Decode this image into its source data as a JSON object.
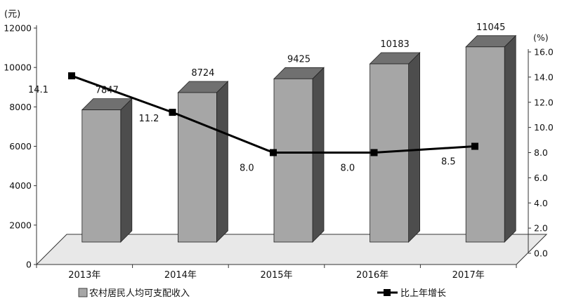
{
  "chart_data": {
    "type": "bar",
    "categories": [
      "2013年",
      "2014年",
      "2015年",
      "2016年",
      "2017年"
    ],
    "series": [
      {
        "name": "农村居民人均可支配收入",
        "type": "bar",
        "axis": "left",
        "values": [
          7847,
          8724,
          9425,
          10183,
          11045
        ],
        "labels": [
          "7847",
          "8724",
          "9425",
          "10183",
          "11045"
        ]
      },
      {
        "name": "比上年增长",
        "type": "line",
        "axis": "right",
        "values": [
          14.1,
          11.2,
          8.0,
          8.0,
          8.5
        ],
        "labels": [
          "14.1",
          "11.2",
          "8.0",
          "8.0",
          "8.5"
        ]
      }
    ],
    "left_axis": {
      "unit": "(元)",
      "ylim": [
        0,
        12000
      ],
      "ticks": [
        "0",
        "2000",
        "4000",
        "6000",
        "8000",
        "10000",
        "12000"
      ]
    },
    "right_axis": {
      "unit": "(%)",
      "ylim": [
        0,
        16
      ],
      "ticks": [
        "0.0",
        "2.0",
        "4.0",
        "6.0",
        "8.0",
        "10.0",
        "12.0",
        "14.0",
        "16.0"
      ]
    },
    "legend_position": "bottom",
    "grid": false,
    "colors": {
      "bar_front": "#a6a6a6",
      "bar_top": "#707070",
      "bar_side": "#4d4d4d",
      "line": "#000000",
      "floor": "#e8e8e8",
      "axis": "#333333"
    }
  }
}
